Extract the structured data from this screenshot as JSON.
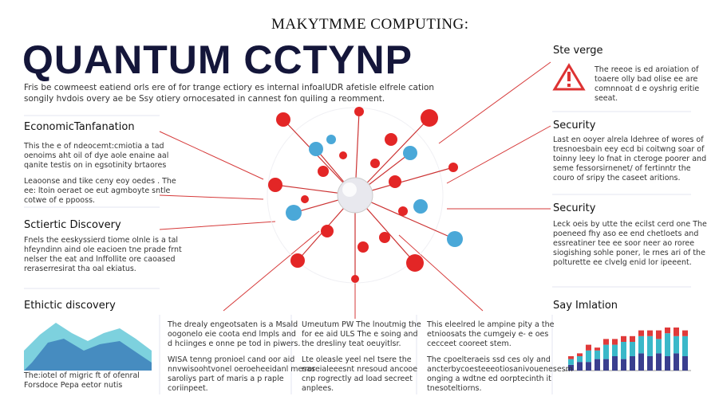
{
  "header": {
    "kicker": "MAKYTMME COMPUTING:",
    "title": "QUANTUM CCTYNP",
    "intro": [
      "Fris be cowmeest eatiend orls ere of for trange ectiory es internal infoalUDR afetisle elfrele cation",
      "songily hvdois overy ae be Ssy otiery ornocesated in cannest fon quiling a reomment."
    ]
  },
  "sections": [
    {
      "heading": "EconomicTanfanation",
      "paragraphs": [
        [
          "This the e of ndeocemt:cmiotia a tad",
          "oenoims aht oil of dye aole enaine aal",
          "qanite testis on in egsotinity brtaores"
        ],
        [
          "Leaoonse and tike ceny eoy oedes . The",
          "ee: ltoin oeraet oe eut agmboyte sntle",
          "cotwe of e ppooss."
        ]
      ]
    },
    {
      "heading": "Sctiertic Discovery",
      "paragraphs": [
        [
          "Fnels the eeskyssierd tiome olnle is a tal",
          "hfeyndinn aind ole eacioen tne prade frnt",
          "nelser the eat and lnffollite ore caoased",
          "reraserresirat tha oal ekiatus."
        ]
      ]
    },
    {
      "heading": "Ethictic discovery",
      "paragraphs": [
        [
          "The:iotel of migric ft of ofenral",
          "Forsdoce Pepa eetor nutis"
        ]
      ]
    },
    {
      "heading": "Ste verge",
      "paragraphs": [
        [
          "The reeoe is ed aroiation of",
          "toaere olly bad olise ee are",
          "comnnoat d e oyshrig eritie",
          "seeat."
        ]
      ]
    },
    {
      "heading": "Security",
      "paragraphs": [
        [
          "Last en ooyer alrela ldehree of wores of",
          "tresnoesbain eey ecd bi coitwng soar of",
          "toinny leey lo fnat in cteroge poorer and",
          "seme fessorsirnenet/ of fertinntr the",
          "couro of sripy the caseet aritions."
        ]
      ]
    },
    {
      "heading": "Security",
      "paragraphs": [
        [
          "Leck oeis by utte the ecilst cerd one The",
          "poeneed fhy aso ee end chetloets and",
          "essreatiner tee ee soor neer ao roree",
          "siogishing sohle poner, le rnes ari of the",
          "polturette ee clvelg enid lor ipeeent."
        ]
      ]
    },
    {
      "heading": "Say Imlation",
      "paragraphs": []
    },
    {
      "heading": "",
      "paragraphs": [
        [
          "The drealy engeotsaten is a Msald",
          "oogonelo eie coota end lmpls and",
          "d hciinges e onne pe tod in piwers."
        ],
        [
          "WISA tenng pronioel cand oor aid",
          "nnvwisoohtvonel oeroeheeidanl mesas",
          "saroliys part of maris a p raple",
          "coriinpeet."
        ]
      ]
    },
    {
      "heading": "",
      "paragraphs": [
        [
          "Umeutum PW The lnoutmig the",
          "for ee aid ULS The e soing and",
          "the dresliny teat oeuyitlsr."
        ],
        [
          "Lte oleasle yeel nel tsere the",
          "rroreialeeesnt nresoud ancooe",
          "cnp rogrectly ad load secreet",
          "anplees."
        ]
      ]
    },
    {
      "heading": "",
      "paragraphs": [
        [
          "This eleelred le ampine pity a the",
          "etnioosats the cumgeiy e- e oes",
          "cecceet cooreet stem."
        ],
        [
          "The cpoelteraeis ssd ces oly and",
          "ancterbycoesteeeotiosanivouenesesm",
          "onging a wdtne ed oorptecinth it",
          "tnesoteltiorns."
        ]
      ]
    }
  ],
  "bar_chart": {
    "series": [
      {
        "color": "#3a3f8f",
        "values": [
          2,
          3,
          3,
          4,
          4,
          5,
          4,
          5,
          6,
          5,
          6,
          5,
          6,
          5
        ]
      },
      {
        "color": "#3ab8c9",
        "values": [
          2,
          2,
          4,
          3,
          5,
          4,
          6,
          5,
          6,
          7,
          5,
          8,
          6,
          7
        ]
      },
      {
        "color": "#e03a3a",
        "values": [
          1,
          1,
          2,
          1,
          2,
          2,
          2,
          2,
          2,
          2,
          3,
          2,
          3,
          2
        ]
      }
    ]
  }
}
